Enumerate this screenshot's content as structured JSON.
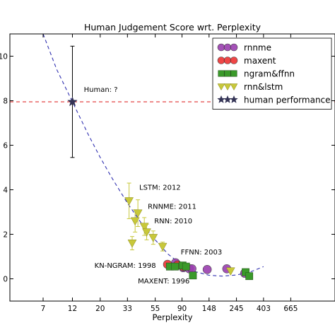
{
  "chart_data": {
    "type": "scatter",
    "title": "Human Judgement Score wrt. Perplexity",
    "xlabel": "Perplexity",
    "ylabel": "",
    "x_scale": "log",
    "xlim": [
      3.8,
      1500
    ],
    "ylim": [
      -1,
      11
    ],
    "x_ticks": [
      7,
      12,
      20,
      33,
      55,
      90,
      148,
      245,
      403,
      665
    ],
    "y_ticks": [
      0,
      2,
      4,
      6,
      8,
      10
    ],
    "grid": false,
    "legend_position": "top-right",
    "human_reference_line": {
      "y": 7.95,
      "color": "#e03030",
      "style": "dashed"
    },
    "fit_curve": {
      "color": "#3030b0",
      "style": "dashed",
      "points": [
        [
          7.0,
          11.0
        ],
        [
          9,
          9.4
        ],
        [
          12,
          7.95
        ],
        [
          16,
          6.5
        ],
        [
          20,
          5.45
        ],
        [
          25,
          4.5
        ],
        [
          33,
          3.4
        ],
        [
          42,
          2.55
        ],
        [
          55,
          1.75
        ],
        [
          70,
          1.1
        ],
        [
          90,
          0.62
        ],
        [
          115,
          0.32
        ],
        [
          148,
          0.16
        ],
        [
          190,
          0.12
        ],
        [
          245,
          0.17
        ],
        [
          320,
          0.32
        ],
        [
          403,
          0.55
        ]
      ]
    },
    "series": [
      {
        "name": "rnnme",
        "marker": "circle",
        "color": "#9b3fb0",
        "points": [
          [
            80,
            0.72
          ],
          [
            92,
            0.5
          ],
          [
            103,
            0.45
          ],
          [
            108,
            0.45
          ],
          [
            143,
            0.42
          ],
          [
            205,
            0.45
          ],
          [
            285,
            0.25
          ]
        ]
      },
      {
        "name": "maxent",
        "marker": "circle",
        "color": "#ee3333",
        "points": [
          [
            69,
            0.65
          ],
          [
            83,
            0.62
          ],
          [
            92,
            0.55
          ]
        ]
      },
      {
        "name": "ngram&ffnn",
        "marker": "square",
        "color": "#3a9a2a",
        "points": [
          [
            72,
            0.55
          ],
          [
            79,
            0.55
          ],
          [
            91,
            0.6
          ],
          [
            97,
            0.55
          ],
          [
            110,
            0.15
          ],
          [
            290,
            0.3
          ],
          [
            310,
            0.12
          ]
        ]
      },
      {
        "name": "rnn&lstm",
        "marker": "triangle",
        "color": "#c8c83a",
        "points": [
          {
            "x": 34,
            "y": 3.5,
            "err": 0.8
          },
          {
            "x": 36,
            "y": 1.6,
            "err": 0.3
          },
          {
            "x": 38,
            "y": 2.6,
            "err": 0.5
          },
          {
            "x": 40,
            "y": 2.95,
            "err": 0.6
          },
          {
            "x": 45,
            "y": 2.35,
            "err": 0.4
          },
          {
            "x": 47,
            "y": 2.1,
            "err": 0.35
          },
          {
            "x": 53,
            "y": 1.85,
            "err": 0.3
          },
          {
            "x": 63,
            "y": 1.45,
            "err": 0.2
          },
          {
            "x": 220,
            "y": 0.35,
            "err": 0
          }
        ]
      },
      {
        "name": "human performance",
        "marker": "star",
        "color": "#333355",
        "points": [
          {
            "x": 12,
            "y": 7.95,
            "err_low": 5.45,
            "err_high": 10.45
          }
        ]
      }
    ],
    "annotations": [
      {
        "text": "Human: ?",
        "x": 14.8,
        "y": 8.4
      },
      {
        "text": "LSTM: 2012",
        "x": 41,
        "y": 4.0
      },
      {
        "text": "RNNME: 2011",
        "x": 48,
        "y": 3.15
      },
      {
        "text": "RNN: 2010",
        "x": 54,
        "y": 2.5
      },
      {
        "text": "FFNN: 2003",
        "x": 88,
        "y": 1.1
      },
      {
        "text": "KN-NGRAM: 1998",
        "x": 18,
        "y": 0.5
      },
      {
        "text": "MAXENT: 1996",
        "x": 40,
        "y": -0.2
      }
    ]
  }
}
